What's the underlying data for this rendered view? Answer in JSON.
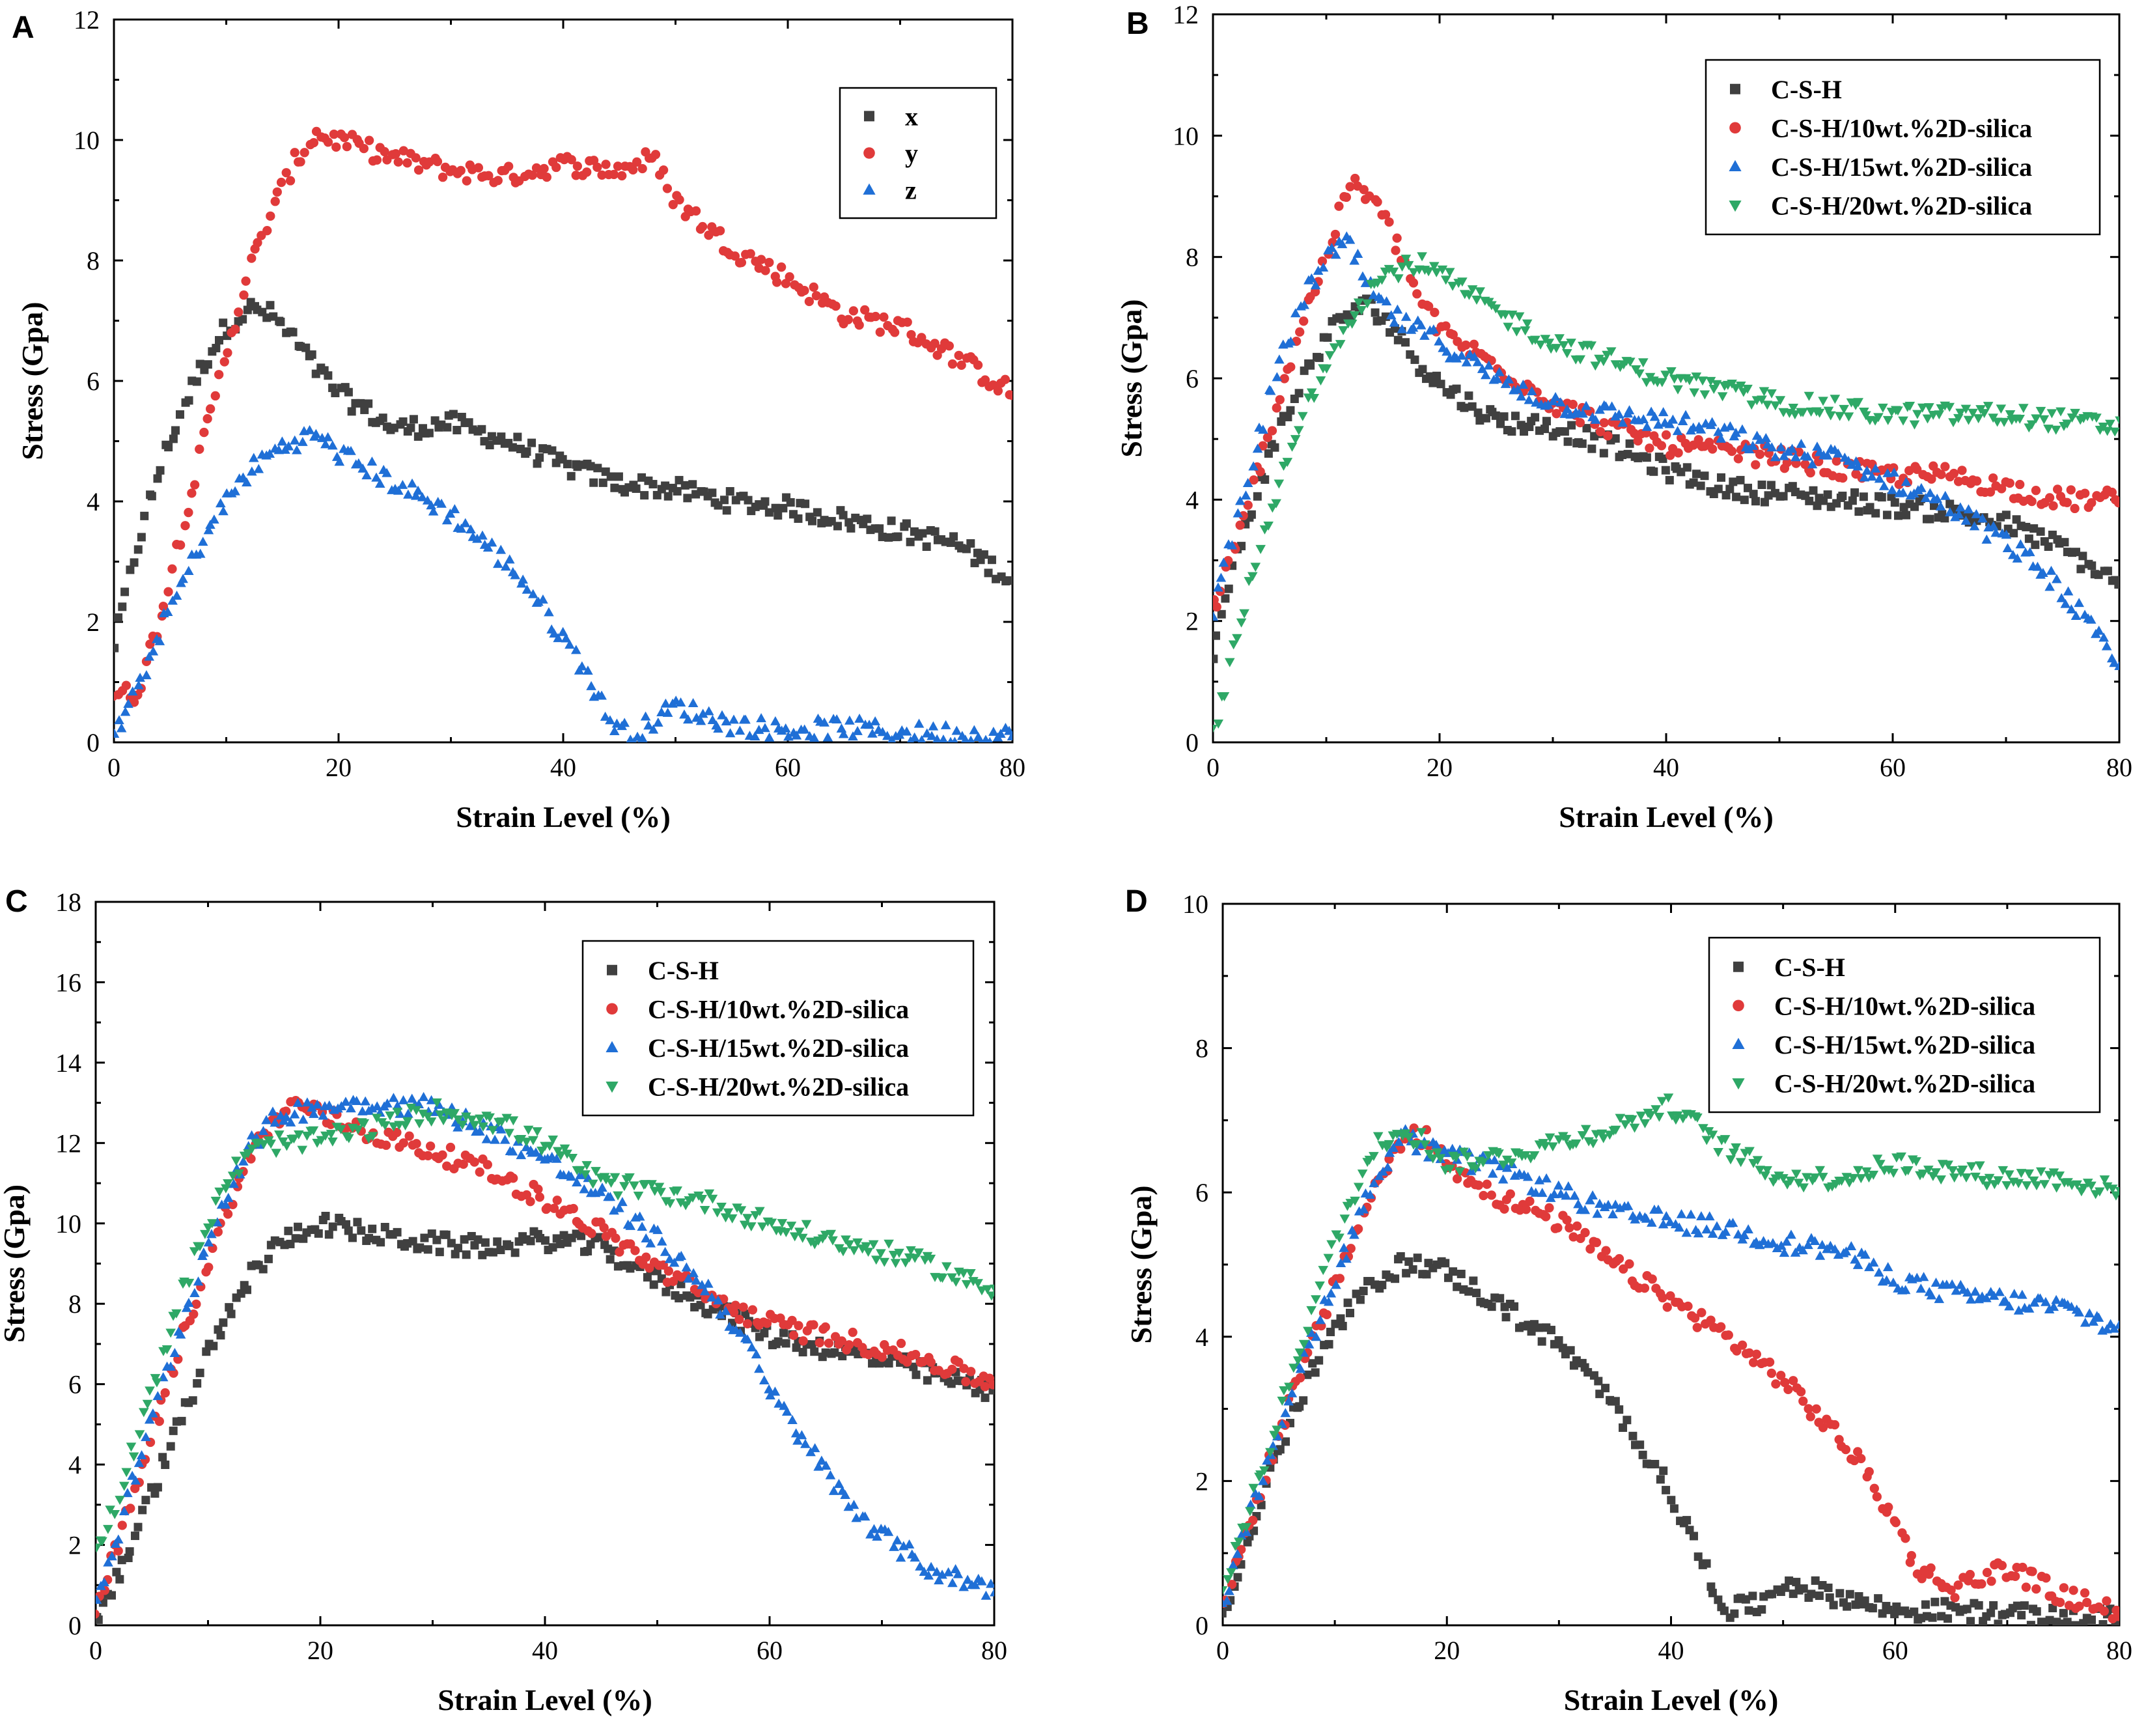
{
  "figure": {
    "colors": {
      "C-S-H": "#404040",
      "x": "#404040",
      "y": "#e03a3a",
      "z": "#1f6fd6",
      "C-S-H/10wt.%2D-silica": "#e03a3a",
      "C-S-H/15wt.%2D-silica": "#1f6fd6",
      "C-S-H/20wt.%2D-silica": "#2ea866"
    }
  },
  "chart_data": [
    {
      "panel": "A",
      "type": "scatter",
      "xlabel": "Strain Level (%)",
      "ylabel": "Stress (Gpa)",
      "xlim": [
        0,
        80
      ],
      "ylim": [
        0,
        12
      ],
      "xticks": [
        0,
        20,
        40,
        60,
        80
      ],
      "yticks": [
        0,
        2,
        4,
        6,
        8,
        10,
        12
      ],
      "legend_position": "top-right",
      "series": [
        {
          "name": "x",
          "marker": "square",
          "color_key": "x",
          "x": [
            0,
            2,
            4,
            6,
            8,
            10,
            12,
            14,
            16,
            18,
            20,
            25,
            30,
            35,
            40,
            45,
            50,
            55,
            60,
            65,
            70,
            75,
            80
          ],
          "y": [
            1.6,
            3.2,
            4.5,
            5.5,
            6.3,
            6.9,
            7.2,
            7.1,
            6.7,
            6.2,
            5.8,
            5.2,
            5.3,
            5.0,
            4.6,
            4.3,
            4.2,
            4.0,
            3.9,
            3.7,
            3.5,
            3.3,
            2.7
          ]
        },
        {
          "name": "y",
          "marker": "circle",
          "color_key": "y",
          "x": [
            0,
            2,
            4,
            6,
            8,
            10,
            12,
            14,
            16,
            18,
            20,
            25,
            30,
            35,
            40,
            45,
            48,
            50,
            55,
            60,
            65,
            70,
            75,
            80
          ],
          "y": [
            0.8,
            0.8,
            2.0,
            3.5,
            5.0,
            6.5,
            7.8,
            8.8,
            9.6,
            10.1,
            10.0,
            9.7,
            9.5,
            9.4,
            9.6,
            9.5,
            9.7,
            9.0,
            8.2,
            7.7,
            7.1,
            6.9,
            6.4,
            5.8
          ]
        },
        {
          "name": "z",
          "marker": "triangle-up",
          "color_key": "z",
          "x": [
            0,
            2,
            4,
            6,
            8,
            10,
            12,
            14,
            16,
            18,
            20,
            25,
            30,
            33,
            36,
            39,
            42,
            44,
            46,
            50,
            55,
            60,
            65,
            70,
            75,
            80
          ],
          "y": [
            0.1,
            0.8,
            1.8,
            2.6,
            3.4,
            4.0,
            4.5,
            4.8,
            5.0,
            5.1,
            4.8,
            4.3,
            3.8,
            3.3,
            2.8,
            2.0,
            1.2,
            0.4,
            0.1,
            0.6,
            0.3,
            0.2,
            0.25,
            0.15,
            0.15,
            0.1
          ]
        }
      ]
    },
    {
      "panel": "B",
      "type": "scatter",
      "xlabel": "Strain Level (%)",
      "ylabel": "Stress (Gpa)",
      "xlim": [
        0,
        80
      ],
      "ylim": [
        0,
        12
      ],
      "xticks": [
        0,
        20,
        40,
        60,
        80
      ],
      "yticks": [
        0,
        2,
        4,
        6,
        8,
        10,
        12
      ],
      "legend_position": "top-right",
      "series": [
        {
          "name": "C-S-H",
          "marker": "square",
          "color_key": "C-S-H",
          "x": [
            0,
            2,
            4,
            6,
            8,
            10,
            12,
            14,
            16,
            18,
            20,
            25,
            30,
            35,
            40,
            45,
            50,
            55,
            60,
            65,
            70,
            75,
            80
          ],
          "y": [
            1.5,
            3.0,
            4.2,
            5.2,
            6.0,
            6.7,
            7.1,
            7.2,
            6.8,
            6.3,
            5.9,
            5.3,
            5.2,
            4.9,
            4.5,
            4.2,
            4.1,
            4.0,
            3.9,
            3.8,
            3.6,
            3.2,
            2.6
          ]
        },
        {
          "name": "C-S-H/10wt.%2D-silica",
          "marker": "circle",
          "color_key": "C-S-H/10wt.%2D-silica",
          "x": [
            0,
            2,
            4,
            6,
            8,
            10,
            12,
            14,
            16,
            18,
            20,
            25,
            30,
            35,
            40,
            45,
            50,
            55,
            60,
            65,
            70,
            75,
            80
          ],
          "y": [
            2.2,
            3.2,
            4.5,
            5.8,
            7.0,
            8.0,
            9.2,
            9.0,
            8.3,
            7.4,
            6.8,
            6.2,
            5.6,
            5.2,
            4.9,
            4.8,
            4.7,
            4.5,
            4.4,
            4.4,
            4.2,
            4.0,
            4.0
          ]
        },
        {
          "name": "C-S-H/15wt.%2D-silica",
          "marker": "triangle-up",
          "color_key": "C-S-H/15wt.%2D-silica",
          "x": [
            0,
            2,
            4,
            6,
            8,
            10,
            12,
            14,
            16,
            18,
            20,
            25,
            30,
            35,
            40,
            45,
            50,
            55,
            60,
            65,
            70,
            74,
            77,
            80
          ],
          "y": [
            2.2,
            3.6,
            5.0,
            6.3,
            7.3,
            8.0,
            8.2,
            7.4,
            7.0,
            6.8,
            6.6,
            6.0,
            5.6,
            5.4,
            5.3,
            5.1,
            4.8,
            4.7,
            4.3,
            3.9,
            3.3,
            2.7,
            2.0,
            1.2
          ]
        },
        {
          "name": "C-S-H/20wt.%2D-silica",
          "marker": "triangle-down",
          "color_key": "C-S-H/20wt.%2D-silica",
          "x": [
            0,
            1,
            2,
            4,
            6,
            8,
            10,
            12,
            14,
            16,
            18,
            20,
            25,
            30,
            35,
            40,
            45,
            50,
            55,
            60,
            65,
            70,
            75,
            80
          ],
          "y": [
            0.1,
            0.8,
            1.8,
            3.0,
            4.3,
            5.4,
            6.3,
            7.0,
            7.5,
            7.8,
            7.9,
            7.7,
            7.1,
            6.6,
            6.3,
            6.0,
            5.8,
            5.6,
            5.5,
            5.4,
            5.4,
            5.4,
            5.3,
            5.2
          ]
        }
      ]
    },
    {
      "panel": "C",
      "type": "scatter",
      "xlabel": "Strain Level (%)",
      "ylabel": "Stress (Gpa)",
      "xlim": [
        0,
        80
      ],
      "ylim": [
        0,
        18
      ],
      "xticks": [
        0,
        20,
        40,
        60,
        80
      ],
      "yticks": [
        0,
        2,
        4,
        6,
        8,
        10,
        12,
        14,
        16,
        18
      ],
      "legend_position": "top-right",
      "series": [
        {
          "name": "C-S-H",
          "marker": "square",
          "color_key": "C-S-H",
          "x": [
            0,
            2,
            4,
            6,
            8,
            10,
            12,
            14,
            16,
            18,
            20,
            25,
            30,
            35,
            40,
            45,
            50,
            55,
            60,
            65,
            70,
            75,
            80
          ],
          "y": [
            0.2,
            1.2,
            2.6,
            4.0,
            5.4,
            6.7,
            7.8,
            8.8,
            9.4,
            9.8,
            10.0,
            9.7,
            9.5,
            9.4,
            9.6,
            9.4,
            8.6,
            7.9,
            7.2,
            6.9,
            6.6,
            6.2,
            5.8
          ]
        },
        {
          "name": "C-S-H/10wt.%2D-silica",
          "marker": "circle",
          "color_key": "C-S-H/10wt.%2D-silica",
          "x": [
            0,
            2,
            4,
            6,
            8,
            10,
            12,
            14,
            16,
            18,
            20,
            25,
            30,
            35,
            40,
            45,
            50,
            55,
            60,
            65,
            70,
            75,
            80
          ],
          "y": [
            0.5,
            2.0,
            3.8,
            5.6,
            7.4,
            9.0,
            10.6,
            11.8,
            12.6,
            13.0,
            12.7,
            12.2,
            11.8,
            11.3,
            10.6,
            9.8,
            8.9,
            8.1,
            7.5,
            7.2,
            6.9,
            6.5,
            6.0
          ]
        },
        {
          "name": "C-S-H/15wt.%2D-silica",
          "marker": "triangle-up",
          "color_key": "C-S-H/15wt.%2D-silica",
          "x": [
            0,
            2,
            4,
            6,
            8,
            10,
            12,
            14,
            16,
            18,
            20,
            25,
            30,
            35,
            40,
            45,
            50,
            55,
            58,
            60,
            63,
            66,
            70,
            75,
            80
          ],
          "y": [
            0.6,
            2.3,
            4.2,
            6.0,
            7.8,
            9.5,
            11.0,
            12.0,
            12.6,
            12.8,
            12.9,
            13.0,
            12.9,
            12.3,
            11.6,
            10.7,
            9.6,
            8.2,
            7.0,
            5.8,
            4.6,
            3.4,
            2.2,
            1.3,
            0.9
          ]
        },
        {
          "name": "C-S-H/20wt.%2D-silica",
          "marker": "triangle-down",
          "color_key": "C-S-H/20wt.%2D-silica",
          "x": [
            0,
            2,
            4,
            6,
            8,
            10,
            12,
            14,
            16,
            18,
            20,
            25,
            30,
            35,
            40,
            45,
            50,
            55,
            60,
            65,
            70,
            75,
            80
          ],
          "y": [
            1.8,
            3.2,
            5.0,
            6.8,
            8.5,
            10.0,
            11.2,
            11.8,
            12.0,
            12.0,
            12.1,
            12.4,
            12.8,
            12.6,
            12.0,
            11.0,
            10.8,
            10.5,
            10.0,
            9.6,
            9.3,
            8.9,
            8.3
          ]
        }
      ]
    },
    {
      "panel": "D",
      "type": "scatter",
      "xlabel": "Strain Level (%)",
      "ylabel": "Stress (Gpa)",
      "xlim": [
        0,
        80
      ],
      "ylim": [
        0,
        10
      ],
      "xticks": [
        0,
        20,
        40,
        60,
        80
      ],
      "yticks": [
        0,
        2,
        4,
        6,
        8,
        10
      ],
      "legend_position": "top-right",
      "series": [
        {
          "name": "C-S-H",
          "marker": "square",
          "color_key": "C-S-H",
          "x": [
            0,
            2,
            4,
            6,
            8,
            10,
            12,
            14,
            16,
            18,
            20,
            25,
            30,
            33,
            36,
            39,
            41,
            43,
            45,
            48,
            50,
            55,
            60,
            65,
            70,
            75,
            80
          ],
          "y": [
            0.2,
            1.0,
            2.0,
            2.8,
            3.5,
            4.1,
            4.5,
            4.8,
            5.0,
            5.0,
            4.9,
            4.4,
            3.9,
            3.4,
            2.8,
            2.1,
            1.5,
            0.8,
            0.2,
            0.3,
            0.6,
            0.4,
            0.2,
            0.2,
            0.15,
            0.1,
            0.1
          ]
        },
        {
          "name": "C-S-H/10wt.%2D-silica",
          "marker": "circle",
          "color_key": "C-S-H/10wt.%2D-silica",
          "x": [
            0,
            2,
            4,
            6,
            8,
            10,
            12,
            14,
            16,
            18,
            20,
            25,
            30,
            35,
            40,
            45,
            50,
            55,
            58,
            60,
            62,
            65,
            70,
            75,
            80
          ],
          "y": [
            0.3,
            1.2,
            2.2,
            3.1,
            3.9,
            4.7,
            5.5,
            6.2,
            6.7,
            6.8,
            6.4,
            5.9,
            5.6,
            5.0,
            4.5,
            4.0,
            3.4,
            2.6,
            2.0,
            1.4,
            0.8,
            0.5,
            0.8,
            0.4,
            0.2
          ]
        },
        {
          "name": "C-S-H/15wt.%2D-silica",
          "marker": "triangle-up",
          "color_key": "C-S-H/15wt.%2D-silica",
          "x": [
            0,
            2,
            4,
            6,
            8,
            10,
            12,
            14,
            16,
            18,
            20,
            25,
            30,
            35,
            40,
            45,
            50,
            55,
            60,
            65,
            70,
            75,
            80
          ],
          "y": [
            0.2,
            1.3,
            2.3,
            3.2,
            4.0,
            4.8,
            5.6,
            6.3,
            6.8,
            6.6,
            6.5,
            6.3,
            6.0,
            5.7,
            5.6,
            5.5,
            5.3,
            5.2,
            4.8,
            4.6,
            4.5,
            4.4,
            4.1
          ]
        },
        {
          "name": "C-S-H/20wt.%2D-silica",
          "marker": "triangle-down",
          "color_key": "C-S-H/20wt.%2D-silica",
          "x": [
            0,
            2,
            4,
            6,
            8,
            10,
            12,
            14,
            16,
            18,
            20,
            25,
            30,
            35,
            40,
            45,
            50,
            55,
            60,
            65,
            70,
            75,
            80
          ],
          "y": [
            0.5,
            1.4,
            2.4,
            3.4,
            4.4,
            5.3,
            6.1,
            6.7,
            6.9,
            6.7,
            6.4,
            6.5,
            6.7,
            6.9,
            7.2,
            6.6,
            6.2,
            6.2,
            6.4,
            6.3,
            6.2,
            6.2,
            6.0
          ]
        }
      ]
    }
  ]
}
